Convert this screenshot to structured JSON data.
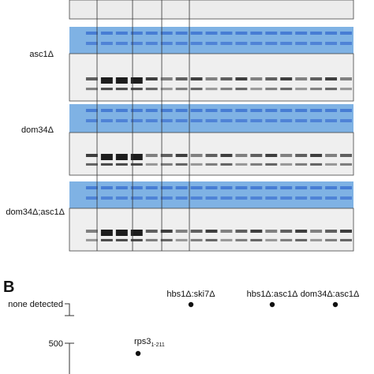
{
  "panel_a": {
    "rows": [
      {
        "label": "asc1Δ"
      },
      {
        "label": "dom34Δ"
      },
      {
        "label": "dom34Δ;asc1Δ"
      }
    ]
  },
  "panel_b": {
    "letter": "B",
    "axis_labels": [
      "none detected",
      "500"
    ],
    "points": [
      {
        "label": "hbs1Δ:ski7Δ"
      },
      {
        "label": "hbs1Δ:asc1Δ"
      },
      {
        "label": "dom34Δ:asc1Δ"
      },
      {
        "label": "rps3",
        "sub": "1-211"
      }
    ]
  }
}
